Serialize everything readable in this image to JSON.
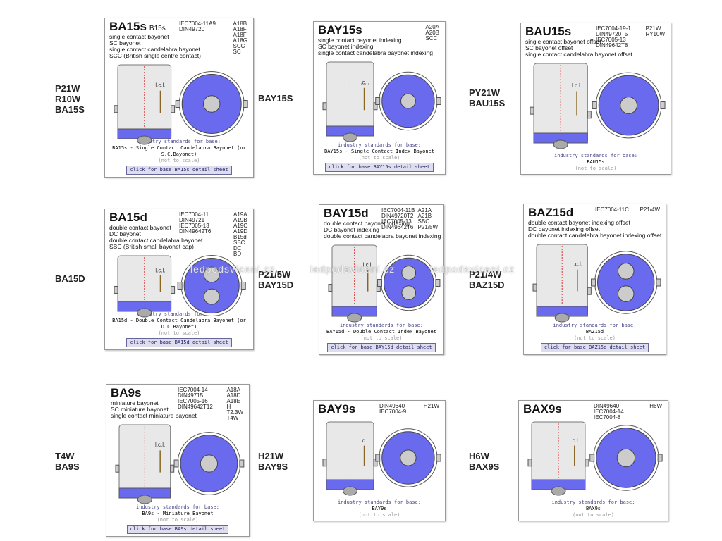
{
  "common": {
    "standards_heading": "industry standards for base:",
    "not_to_scale": "(not to scale)",
    "lcl": "l.c.l.",
    "watermark": "ledpodsvícení.cz"
  },
  "cards": [
    {
      "side_label": [
        "P21W",
        "R10W",
        "BA15S"
      ],
      "title": "BA15s",
      "subtitle": "B15s",
      "codes": [
        "IEC7004-11A9",
        "DIN49720"
      ],
      "types": [
        "A18B",
        "A18F",
        "A18F",
        "A18G",
        "SCC",
        "SC"
      ],
      "description": [
        "single contact bayonet",
        "SC bayonet",
        "single contact candelabra bayonet",
        "SCC (British single centre contact)"
      ],
      "standard": "BA15s - Single Contact Candelabra Bayonet (or S.C.Bayonet)",
      "link": "click for base BA15s detail sheet"
    },
    {
      "side_label": [
        "BAY15S"
      ],
      "title": "BAY15s",
      "codes": [],
      "types": [
        "A20A",
        "A20B",
        "SCC"
      ],
      "description": [
        "single contact bayonet indexing",
        "SC bayonet indexing",
        "single contact candelabra bayonet indexing"
      ],
      "standard": "BAY15s - Single Contact Index Bayonet",
      "link": "click for base BAY15s detail sheet"
    },
    {
      "side_label": [
        "PY21W",
        "BAU15S"
      ],
      "title": "BAU15s",
      "codes": [
        "IEC7004-19-1",
        "DIN49720T5",
        "IEC7005-13",
        "DIN49642T8"
      ],
      "types": [
        "P21W",
        "RY10W"
      ],
      "description": [
        "single contact bayonet offset",
        "SC bayonet offset",
        "single contact candelabra bayonet offset"
      ],
      "standard": "BAU15s"
    },
    {
      "side_label": [
        "BA15D"
      ],
      "title": "BA15d",
      "codes": [
        "IEC7004-11",
        "DIN49721",
        "IEC7005-13",
        "DIN49642T6"
      ],
      "types": [
        "A19A",
        "A19B",
        "A19C",
        "A19D",
        "B15d",
        "SBC",
        "DC",
        "BD"
      ],
      "description": [
        "double contact bayonet",
        "DC bayonet",
        "double contact candelabra bayonet",
        "SBC (British small bayonet cap)"
      ],
      "standard": "BA15d - Double Contact Candelabra Bayonet (or D.C.Bayonet)",
      "link": "click for base BA15d detail sheet"
    },
    {
      "side_label": [
        "P21/5W",
        "BAY15D"
      ],
      "title": "BAY15d",
      "codes": [
        "IEC7004-11B",
        "DIN49720T2",
        "IEC7005-13",
        "DIN49642T6"
      ],
      "types": [
        "A21A",
        "A21B",
        "SBC",
        "P21/5W"
      ],
      "description": [
        "double contact bayonet indexing",
        "DC bayonet indexing",
        "double contact candelabra bayonet indexing"
      ],
      "standard": "BAY15d - Double Contact Index Bayonet",
      "link": "click for base BAY15d detail sheet"
    },
    {
      "side_label": [
        "P21/4W",
        "BAZ15D"
      ],
      "title": "BAZ15d",
      "codes": [
        "IEC7004-11C"
      ],
      "types": [
        "P21/4W"
      ],
      "description": [
        "double contact bayonet indexing offset",
        "DC bayonet indexing offset",
        "double contact candelabra bayonet indexing offset"
      ],
      "standard": "BAZ15d",
      "link": "click for base BAZ15d detail sheet"
    },
    {
      "side_label": [
        "T4W",
        "BA9S"
      ],
      "title": "BA9s",
      "codes": [
        "IEC7004-14",
        "DIN49715",
        "IEC7005-16",
        "DIN49642T12"
      ],
      "types": [
        "A18A",
        "A18D",
        "A18E",
        "H",
        "T2.3W",
        "T4W"
      ],
      "description": [
        "miniature bayonet",
        "SC miniature bayonet",
        "single contact miniature bayonet"
      ],
      "standard": "BA9s - Miniature Bayonet",
      "link": "click for base BA9s detail sheet"
    },
    {
      "side_label": [
        "H21W",
        "BAY9S"
      ],
      "title": "BAY9s",
      "codes": [
        "DIN49640",
        "IEC7004-9"
      ],
      "types": [
        "H21W"
      ],
      "description": [],
      "standard": "BAY9s"
    },
    {
      "side_label": [
        "H6W",
        "BAX9S"
      ],
      "title": "BAX9s",
      "codes": [
        "DIN49640",
        "IEC7004-14",
        "IEC7004-8"
      ],
      "types": [
        "H6W"
      ],
      "description": [],
      "standard": "BAX9s"
    }
  ]
}
